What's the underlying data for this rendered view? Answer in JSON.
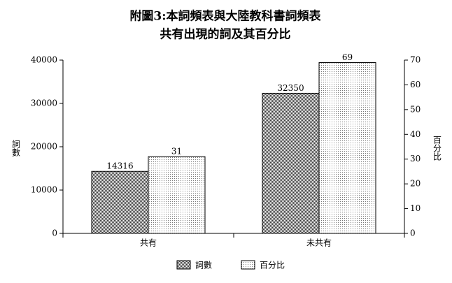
{
  "chart_data": {
    "type": "bar",
    "title": "附圖3:本詞頻表與大陸教科書詞頻表",
    "subtitle": "共有出現的詞及其百分比",
    "y_label": "詞數",
    "y2_label": "百分比",
    "categories": [
      "共有",
      "未共有"
    ],
    "series": [
      {
        "name": "詞數",
        "color": "#333333",
        "values": [
          14316,
          32350
        ]
      },
      {
        "name": "百分比",
        "color": "#777777",
        "values": [
          31,
          69
        ],
        "axis": "y2"
      }
    ],
    "ylim": [
      0,
      40000
    ],
    "yticks": [
      0,
      10000,
      20000,
      30000,
      40000
    ],
    "y2lim": [
      0,
      70
    ],
    "y2ticks": [
      0,
      10,
      20,
      30,
      40,
      50,
      60,
      70
    ],
    "legend": "bottom"
  }
}
